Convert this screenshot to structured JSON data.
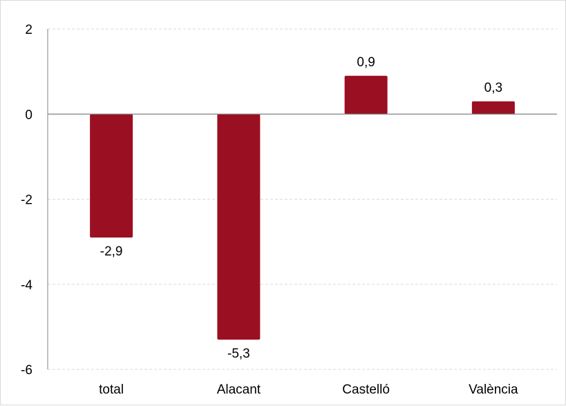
{
  "chart_data": {
    "type": "bar",
    "categories": [
      "total",
      "Alacant",
      "Castelló",
      "València"
    ],
    "values": [
      -2.9,
      -5.3,
      0.9,
      0.3
    ],
    "value_labels": [
      "-2,9",
      "-5,3",
      "0,9",
      "0,3"
    ],
    "title": "",
    "xlabel": "",
    "ylabel": "",
    "ylim": [
      -6,
      2
    ],
    "yticks": [
      2,
      0,
      -2,
      -4,
      -6
    ],
    "ytick_labels": [
      "2",
      "0",
      "-2",
      "-4",
      "-6"
    ],
    "grid": true,
    "legend": "none",
    "colors": {
      "bar": "#9b0f23",
      "grid": "#d9d9d9",
      "axis": "#808080",
      "text": "#000000"
    }
  }
}
